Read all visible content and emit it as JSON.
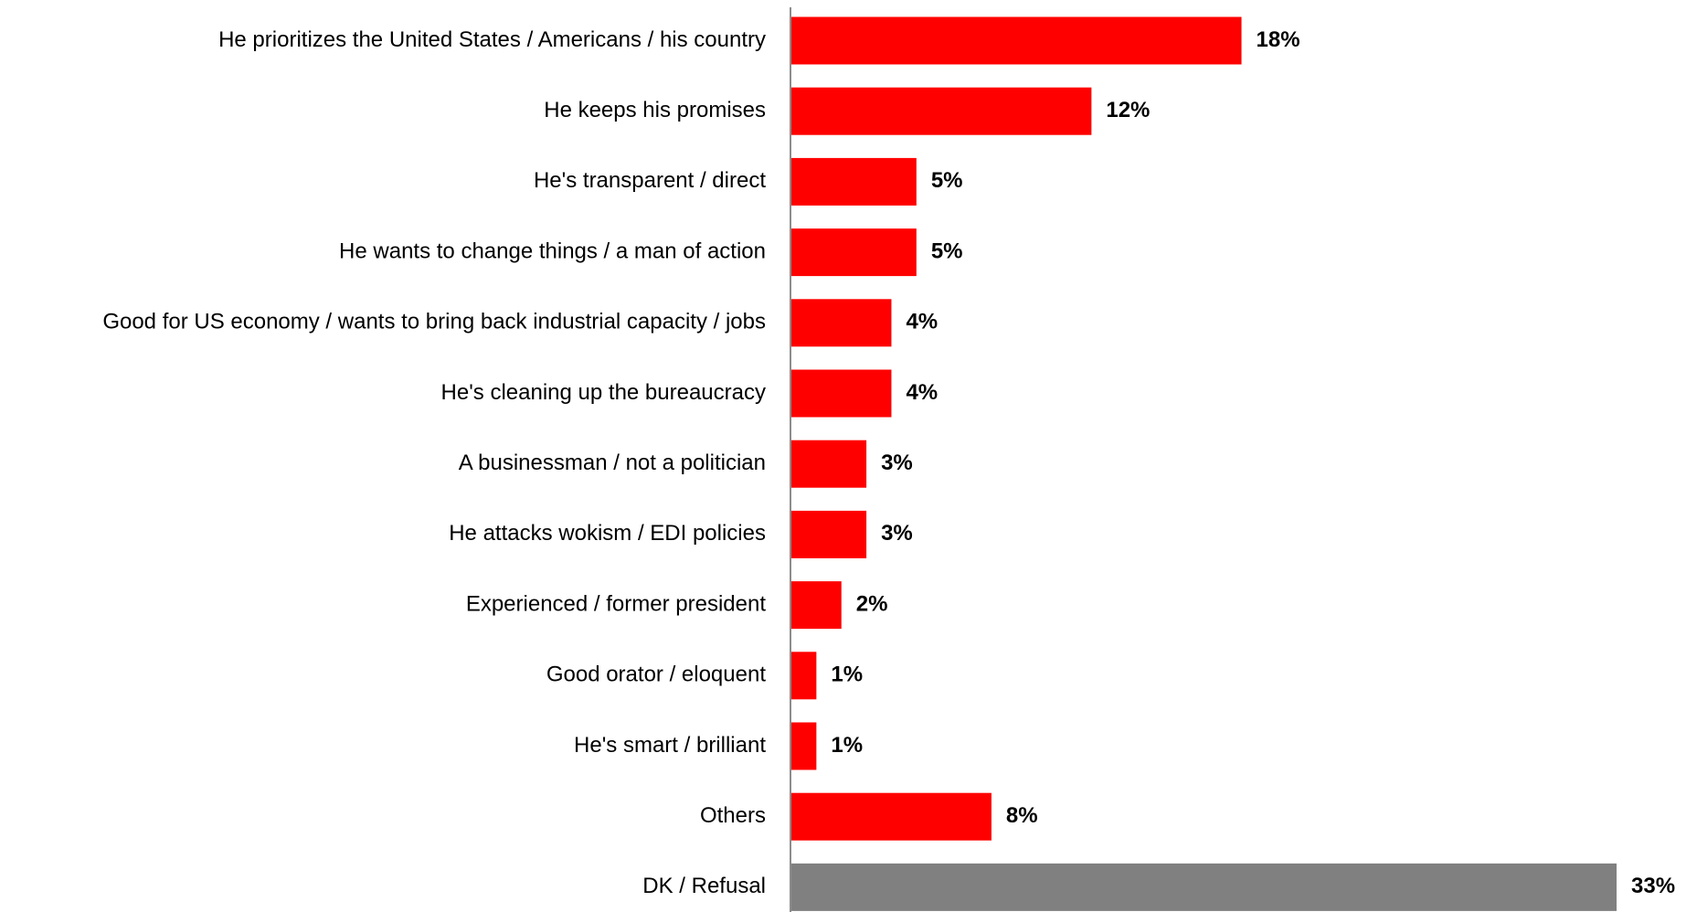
{
  "chart_data": {
    "type": "bar",
    "orientation": "horizontal",
    "categories": [
      "He prioritizes the United States / Americans / his country",
      "He keeps his promises",
      "He's transparent / direct",
      "He wants to change things / a man of action",
      "Good for US economy / wants to bring back industrial capacity / jobs",
      "He's cleaning up the bureaucracy",
      "A businessman / not a politician",
      "He attacks wokism / EDI policies",
      "Experienced / former president",
      "Good orator / eloquent",
      "He's smart / brilliant",
      "Others",
      "DK / Refusal"
    ],
    "values": [
      18,
      12,
      5,
      5,
      4,
      4,
      3,
      3,
      2,
      1,
      1,
      8,
      33
    ],
    "value_labels": [
      "18%",
      "12%",
      "5%",
      "5%",
      "4%",
      "4%",
      "3%",
      "3%",
      "2%",
      "1%",
      "1%",
      "8%",
      "33%"
    ],
    "bar_colors": [
      "#ff0000",
      "#ff0000",
      "#ff0000",
      "#ff0000",
      "#ff0000",
      "#ff0000",
      "#ff0000",
      "#ff0000",
      "#ff0000",
      "#ff0000",
      "#ff0000",
      "#ff0000",
      "#808080"
    ],
    "xlim": [
      0,
      33
    ],
    "grid": false,
    "legend": "none",
    "title": "",
    "xlabel": "",
    "ylabel": ""
  }
}
